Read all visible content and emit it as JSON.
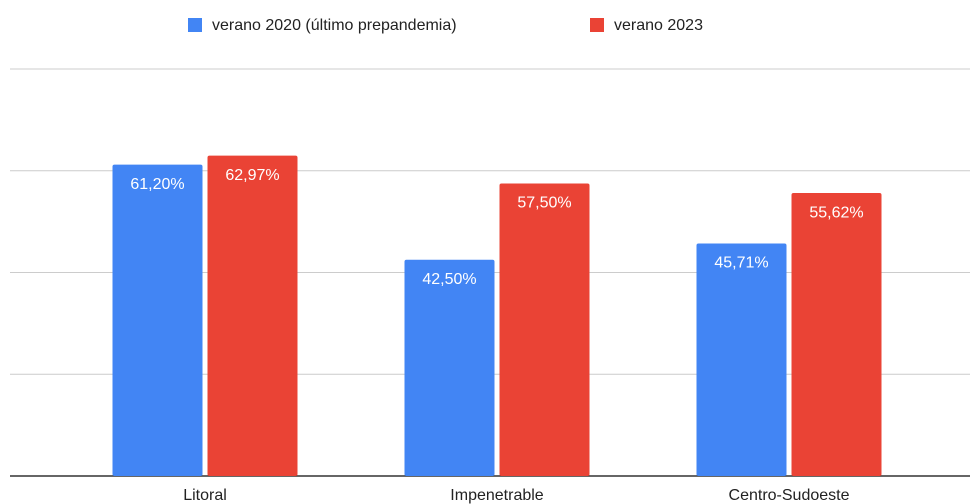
{
  "chart_data": {
    "type": "bar",
    "categories": [
      "Litoral",
      "Impenetrable",
      "Centro-Sudoeste"
    ],
    "series": [
      {
        "name": "verano 2020 (último prepandemia)",
        "color": "#4285f4",
        "values": [
          61.2,
          42.5,
          45.71
        ],
        "value_labels": [
          "61,20%",
          "42,50%",
          "45,71%"
        ]
      },
      {
        "name": "verano 2023",
        "color": "#ea4335",
        "values": [
          62.97,
          57.5,
          55.62
        ],
        "value_labels": [
          "62,97%",
          "57,50%",
          "55,62%"
        ]
      }
    ],
    "ylim": [
      0,
      80
    ],
    "yticks": [
      0,
      20,
      40,
      60,
      80
    ],
    "grid": true,
    "legend": "top"
  }
}
